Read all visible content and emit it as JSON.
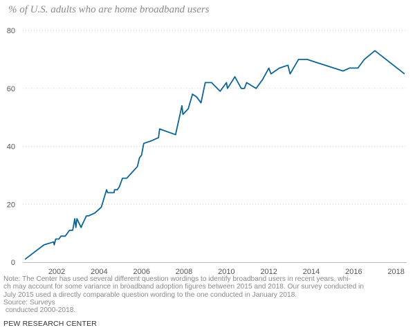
{
  "chart_data": {
    "type": "line",
    "title": "% of U.S. adults who are home broadband users",
    "xlabel": "",
    "ylabel": "",
    "xlim": [
      2000.4,
      2018.5
    ],
    "ylim": [
      0,
      80
    ],
    "yticks": [
      0,
      20,
      40,
      60,
      80
    ],
    "xticks": [
      2002,
      2004,
      2006,
      2008,
      2010,
      2012,
      2014,
      2016,
      2018
    ],
    "grid": "horizontal-dotted",
    "color": "#0b6494",
    "series": [
      {
        "x": [
          2000.5,
          2001.4,
          2001.85,
          2001.88,
          2001.95,
          2002.1,
          2002.2,
          2002.4,
          2002.6,
          2002.75,
          2002.8,
          2002.85,
          2002.9,
          2002.95,
          2003.15,
          2003.2,
          2003.4,
          2003.5,
          2003.8,
          2004.1,
          2004.35,
          2004.4,
          2004.7,
          2004.72,
          2004.85,
          2004.95,
          2005.1,
          2005.3,
          2005.8,
          2005.9,
          2006.0,
          2006.1,
          2006.5,
          2006.8,
          2006.85,
          2007.6,
          2007.9,
          2007.95,
          2008.2,
          2008.4,
          2008.6,
          2008.8,
          2009.0,
          2009.3,
          2009.7,
          2010.0,
          2010.05,
          2010.4,
          2010.7,
          2010.85,
          2010.95,
          2011.4,
          2011.7,
          2012.0,
          2012.1,
          2012.5,
          2012.9,
          2013.0,
          2013.4,
          2013.8,
          2015.5,
          2015.8,
          2016.2,
          2016.5,
          2017.0,
          2018.4
        ],
        "y": [
          1,
          6,
          7,
          6,
          8,
          8,
          9,
          9,
          11,
          11,
          13,
          15,
          12,
          15,
          12,
          13,
          16,
          16,
          17,
          19,
          25,
          24,
          24,
          25,
          25,
          26,
          29,
          29,
          33,
          36,
          37,
          41,
          42,
          43,
          46,
          44,
          54,
          51,
          53,
          58,
          57,
          55,
          62,
          62,
          59,
          62,
          60,
          64,
          60,
          60,
          62,
          60,
          63,
          67,
          65,
          67,
          68,
          65,
          70,
          70,
          66,
          67,
          67,
          70,
          73,
          65
        ]
      }
    ],
    "note": "Note: The Center has used several different question wordings to identify broadband users in recent years, whi-\nch may account for some variance in broadband adoption figures between 2015 and 2018. Our survey conducted in\nJuly 2015 used a directly comparable question wording to the one conducted in January 2018.",
    "source": "Source: Surveys\n conducted 2000-2018."
  },
  "branding": {
    "logo_text": "PEW RESEARCH CENTER"
  }
}
